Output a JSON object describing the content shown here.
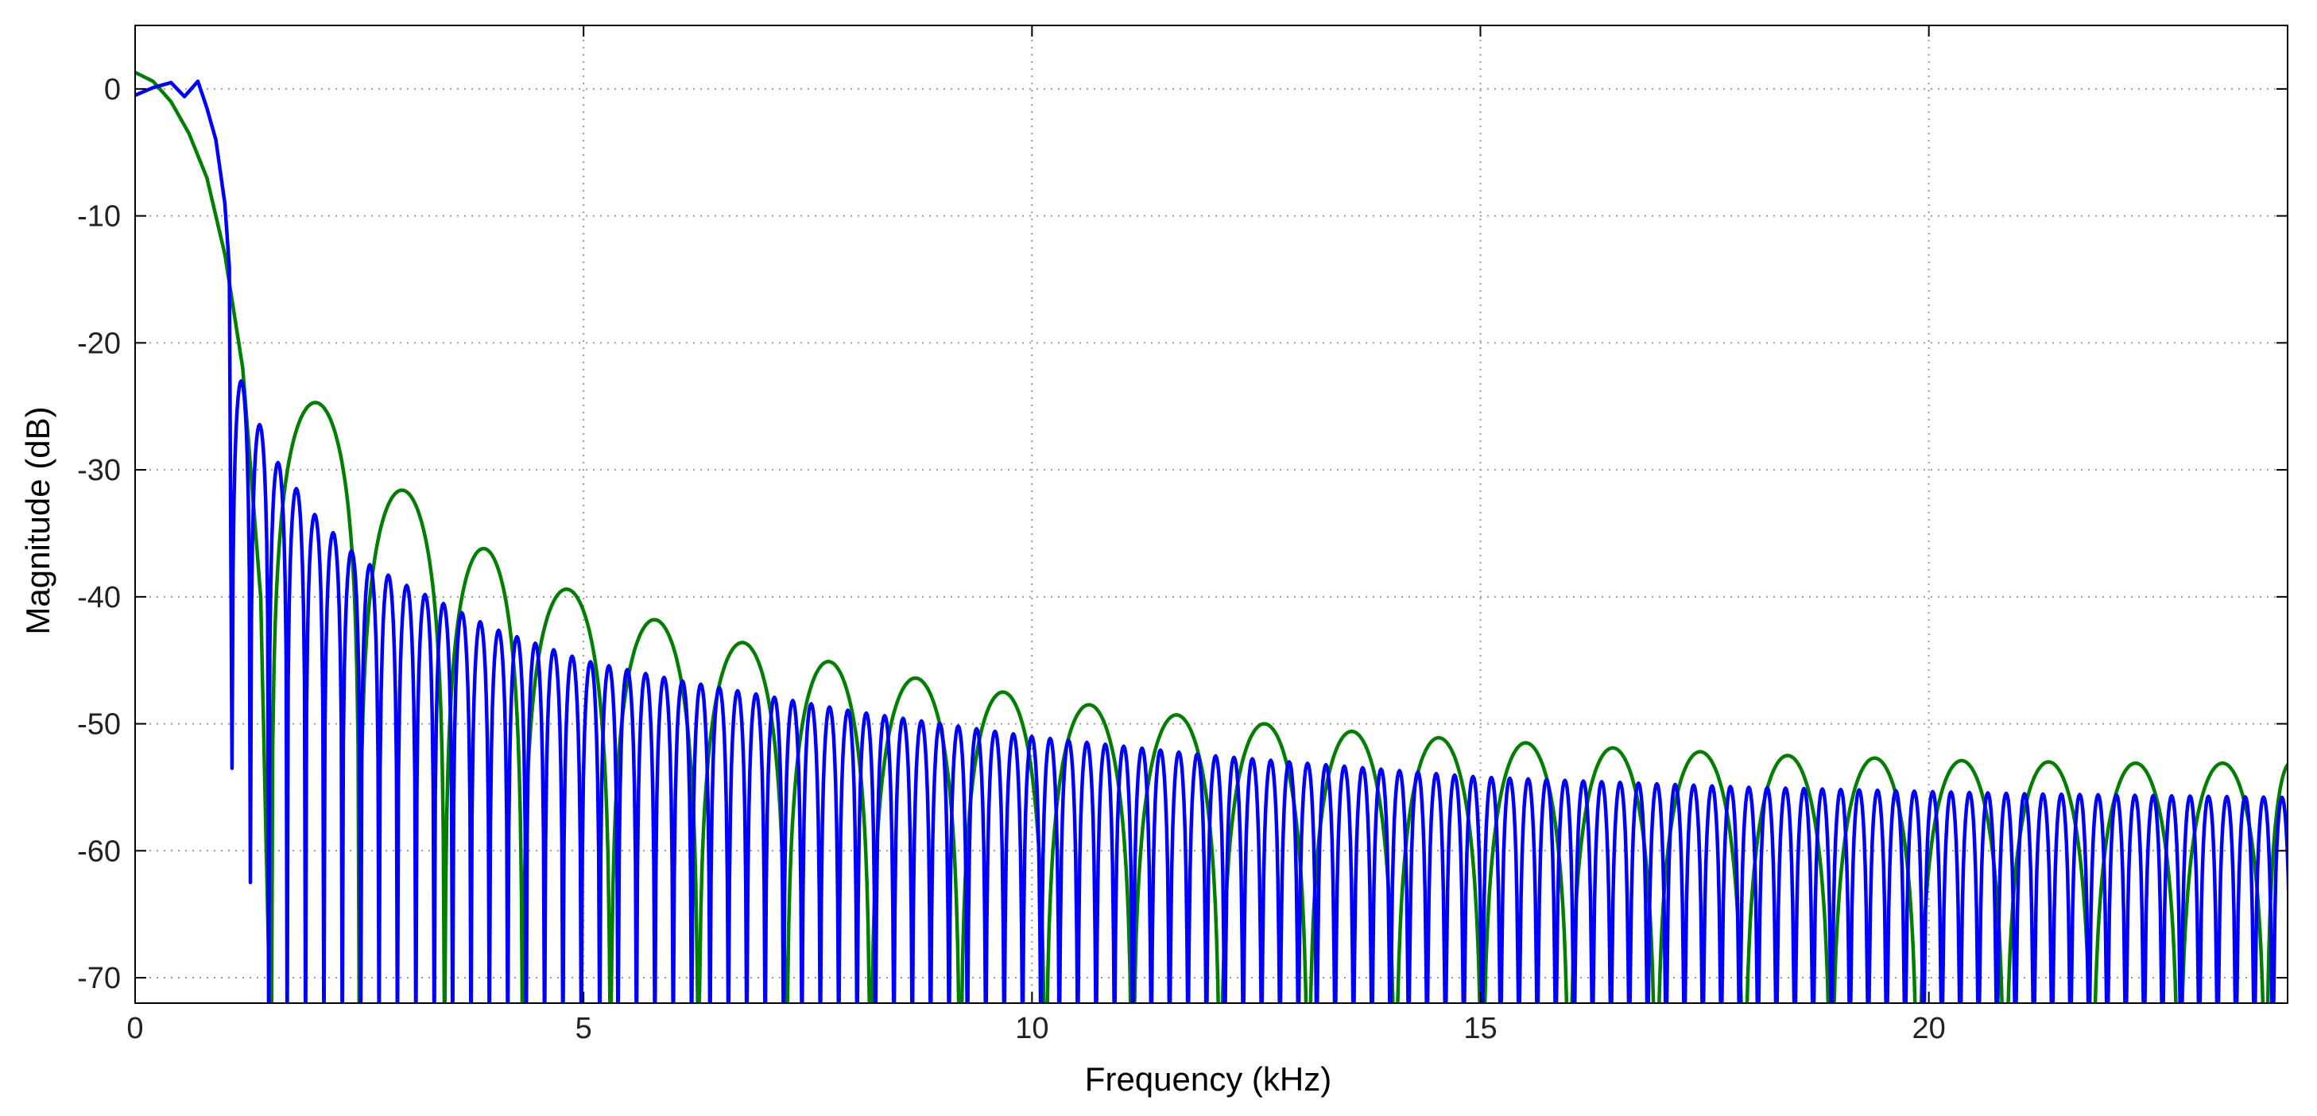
{
  "chart_data": {
    "type": "line",
    "title": "",
    "xlabel": "Frequency (kHz)",
    "ylabel": "Magnitude (dB)",
    "xlim": [
      0,
      24
    ],
    "ylim": [
      -72,
      5
    ],
    "grid": true,
    "xticks": [
      0,
      5,
      10,
      15,
      20
    ],
    "yticks": [
      0,
      -10,
      -20,
      -30,
      -40,
      -50,
      -60,
      -70
    ],
    "xtick_labels": [
      "0",
      "5",
      "10",
      "15",
      "20"
    ],
    "ytick_labels": [
      "0",
      "-10",
      "-20",
      "-30",
      "-40",
      "-50",
      "-60",
      "-70"
    ],
    "series": [
      {
        "color": "#0000ff",
        "style": "dense lowpass response, first null near 1.1 kHz, sidelobe nulls every ~0.2 kHz",
        "mainlobe": {
          "x": [
            0,
            0.2,
            0.4,
            0.55,
            0.7,
            0.8,
            0.9,
            1.0,
            1.05
          ],
          "y": [
            -0.5,
            0.1,
            0.5,
            -0.6,
            0.6,
            -1.5,
            -4,
            -9,
            -14
          ]
        },
        "nulls": {
          "first_kHz": 1.08,
          "spacing_kHz": 0.205,
          "depth_db": -72,
          "deep_extra": [
            [
              1.08,
              -53.5
            ],
            [
              1.29,
              -62.5
            ]
          ]
        },
        "sidelobe_envelope": {
          "x": [
            1.2,
            1.5,
            2,
            2.5,
            3,
            4,
            5,
            6,
            8,
            10,
            12,
            15,
            18,
            21,
            24
          ],
          "y": [
            -23,
            -28.5,
            -33.5,
            -37,
            -39,
            -42.5,
            -45,
            -46.5,
            -49,
            -51,
            -52.5,
            -54.2,
            -55,
            -55.5,
            -55.8
          ]
        }
      },
      {
        "color": "#007f00",
        "style": "wider sinc-like response, mainlobe to ~1.5 kHz, nulls every ~0.97 kHz",
        "mainlobe": {
          "x": [
            0,
            0.2,
            0.4,
            0.6,
            0.8,
            1.0,
            1.2,
            1.4,
            1.5
          ],
          "y": [
            1.3,
            0.6,
            -1.0,
            -3.5,
            -7,
            -13,
            -22,
            -40,
            -72
          ]
        },
        "nulls_kHz": [
          1.52,
          2.5,
          3.45,
          4.32,
          5.3,
          6.28,
          7.26,
          8.2,
          9.2,
          10.15,
          11.12,
          12.1,
          13.08,
          14.05,
          15.02,
          15.99,
          16.96,
          17.94,
          18.91,
          19.88,
          20.85,
          21.82,
          22.79,
          23.76
        ],
        "sidelobe_peaks": {
          "x": [
            1.95,
            2.9,
            3.8,
            4.78,
            5.72,
            6.7,
            7.7,
            8.67,
            9.65,
            10.62,
            11.6,
            12.57,
            13.55,
            14.52,
            15.5,
            16.47,
            17.45,
            18.42,
            19.4,
            20.37,
            21.35,
            22.32,
            23.3
          ],
          "y": [
            -24.7,
            -31.6,
            -36.2,
            -39.4,
            -41.8,
            -43.6,
            -45.1,
            -46.4,
            -47.5,
            -48.5,
            -49.3,
            -50.0,
            -50.6,
            -51.1,
            -51.5,
            -51.9,
            -52.2,
            -52.5,
            -52.7,
            -52.9,
            -53.0,
            -53.1,
            -53.1
          ]
        }
      }
    ]
  }
}
